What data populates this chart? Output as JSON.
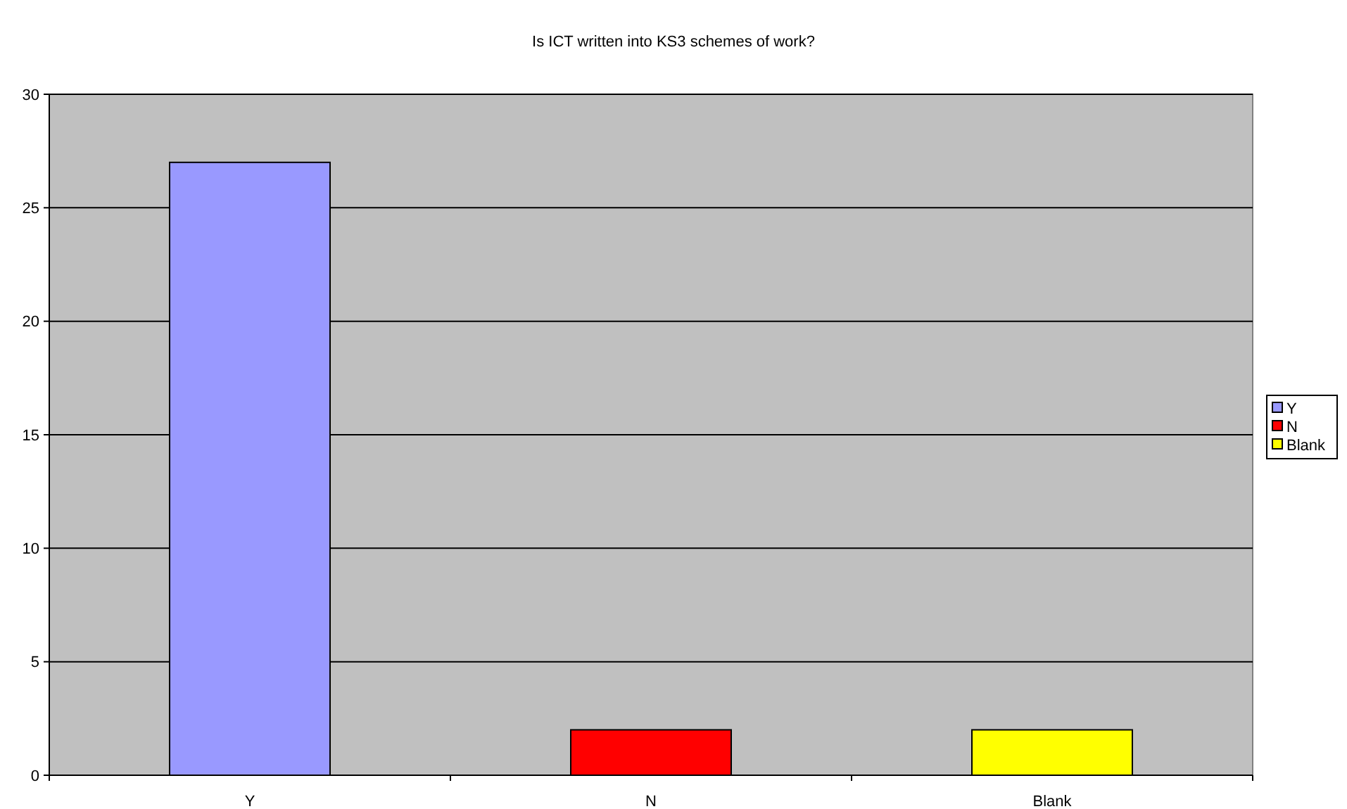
{
  "chart_data": {
    "type": "bar",
    "title": "Is ICT written into KS3 schemes of work?",
    "categories": [
      "Y",
      "N",
      "Blank"
    ],
    "stacked": true,
    "series": [
      {
        "name": "Y",
        "color": "#9999ff",
        "values": [
          27,
          null,
          null
        ]
      },
      {
        "name": "N",
        "color": "#ff0000",
        "values": [
          null,
          2,
          null
        ]
      },
      {
        "name": "Blank",
        "color": "#ffff00",
        "values": [
          null,
          null,
          2
        ]
      }
    ],
    "ylim": [
      0,
      30
    ],
    "yticks": [
      0,
      5,
      10,
      15,
      20,
      25,
      30
    ],
    "grid": "y",
    "legend": "right"
  }
}
